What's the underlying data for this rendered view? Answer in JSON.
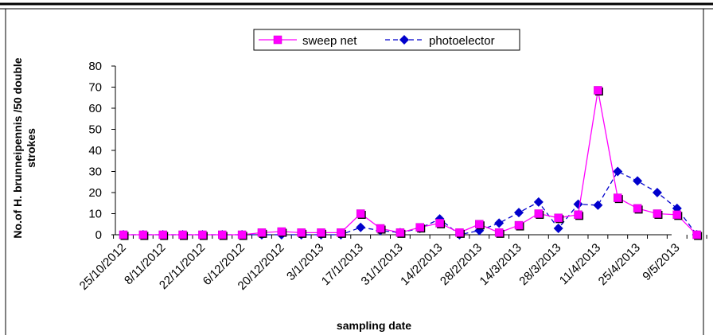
{
  "chart_data": {
    "type": "line",
    "title": "",
    "xlabel": "sampling date",
    "ylabel": "No.of H. brunneipennis /50 double strokes",
    "ylim": [
      0,
      80
    ],
    "yticks": [
      0,
      10,
      20,
      30,
      40,
      50,
      60,
      70,
      80
    ],
    "grid": false,
    "legend_position": "top-center",
    "x_tick_labels": [
      "25/10/2012",
      "8/11/2012",
      "22/11/2012",
      "6/12/2012",
      "20/12/2012",
      "3/1/2013",
      "17/1/2013",
      "31/1/2013",
      "14/2/2013",
      "28/2/2013",
      "14/3/2013",
      "28/3/2013",
      "11/4/2013",
      "25/4/2013",
      "9/5/2013"
    ],
    "x_tick_every": 2,
    "series": [
      {
        "name": "sweep net",
        "color": "#ff00ff",
        "marker": "square",
        "line_style": "solid",
        "values": [
          0,
          0,
          0,
          0,
          0,
          0,
          0,
          1,
          1.5,
          1,
          1,
          1,
          10,
          3,
          1,
          3.5,
          5.5,
          1,
          5,
          1,
          4.5,
          10,
          8,
          9.5,
          68.5,
          17.5,
          12.5,
          10,
          9.5,
          0
        ]
      },
      {
        "name": "photoelector",
        "color": "#0000cc",
        "marker": "diamond",
        "line_style": "dashed",
        "values": [
          0,
          0,
          0,
          0,
          0,
          0,
          0,
          0,
          0,
          0,
          0,
          0,
          3.5,
          2,
          1,
          3,
          7.5,
          0,
          2,
          5.5,
          10.5,
          15.5,
          3,
          14.5,
          14,
          30,
          25.5,
          20,
          12.5,
          0
        ]
      }
    ]
  }
}
